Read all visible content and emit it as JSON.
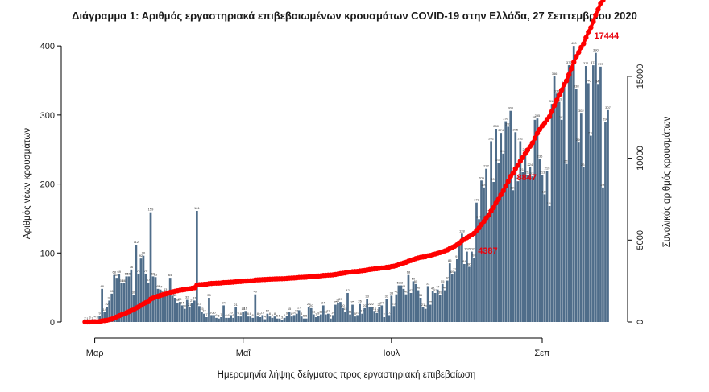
{
  "chart_data": {
    "type": "bar+line",
    "title": "Διάγραμμα 1: Αριθμός εργαστηριακά επιβεβαιωμένων κρουσμάτων COVID-19 στην Ελλάδα, 27 Σεπτεμβρίου 2020",
    "xlabel": "Ημερομηνία λήψης δείγματος προς εργαστηριακή επιβεβαίωση",
    "ylabel_left": "Αριθμός νέων κρουσμάτων",
    "ylabel_right": "Συνολικός αριθμός κρουσμάτων",
    "x_start": "2020-02-26",
    "x_ticks": [
      {
        "date": "2020-03-01",
        "label": "Μαρ"
      },
      {
        "date": "2020-05-01",
        "label": "Μαΐ"
      },
      {
        "date": "2020-07-01",
        "label": "Ιουλ"
      },
      {
        "date": "2020-09-01",
        "label": "Σεπ"
      }
    ],
    "y_left_ticks": [
      0,
      100,
      200,
      300,
      400
    ],
    "y_left_lim": [
      0,
      420
    ],
    "y_right_ticks": [
      0,
      5000,
      10000,
      15000
    ],
    "y_right_lim": [
      0,
      17700
    ],
    "daily_values": [
      2,
      1,
      3,
      2,
      4,
      3,
      9,
      48,
      14,
      22,
      31,
      41,
      68,
      64,
      69,
      56,
      56,
      66,
      66,
      76,
      39,
      112,
      70,
      92,
      96,
      70,
      57,
      159,
      66,
      65,
      48,
      47,
      40,
      43,
      38,
      64,
      38,
      35,
      28,
      29,
      24,
      19,
      32,
      21,
      27,
      31,
      161,
      23,
      15,
      12,
      7,
      35,
      10,
      10,
      6,
      5,
      7,
      24,
      6,
      6,
      10,
      6,
      21,
      9,
      8,
      15,
      16,
      8,
      8,
      6,
      40,
      8,
      7,
      10,
      4,
      12,
      8,
      6,
      8,
      5,
      5,
      3,
      6,
      9,
      15,
      8,
      10,
      12,
      17,
      8,
      5,
      5,
      22,
      20,
      11,
      7,
      9,
      11,
      24,
      11,
      12,
      5,
      10,
      25,
      27,
      29,
      20,
      15,
      42,
      11,
      25,
      8,
      10,
      26,
      12,
      20,
      33,
      22,
      22,
      16,
      13,
      21,
      24,
      7,
      33,
      10,
      38,
      23,
      40,
      53,
      53,
      48,
      40,
      68,
      42,
      59,
      55,
      46,
      35,
      21,
      19,
      52,
      25,
      45,
      42,
      47,
      39,
      55,
      46,
      60,
      85,
      69,
      73,
      91,
      111,
      128,
      84,
      102,
      80,
      102,
      93,
      173,
      149,
      205,
      195,
      222,
      157,
      262,
      203,
      280,
      231,
      274,
      244,
      291,
      283,
      306,
      191,
      275,
      204,
      262,
      217,
      246,
      213,
      224,
      211,
      293,
      295,
      236,
      213,
      185,
      219,
      168,
      316,
      356,
      331,
      319,
      293,
      343,
      229,
      372,
      367,
      400,
      338,
      260,
      302,
      224,
      371,
      346,
      270,
      372,
      390,
      345,
      370,
      195,
      290,
      307
    ],
    "cumulative_labels": [
      {
        "date": "2020-08-15",
        "value": 4387,
        "label": "4387"
      },
      {
        "date": "2020-08-31",
        "value": 8847,
        "label": "8847"
      },
      {
        "date": "2020-09-27",
        "value": 17444,
        "label": "17444"
      }
    ],
    "final_total": 17444,
    "bar_color": "#4f6d8a",
    "line_color": "#ff0000"
  }
}
